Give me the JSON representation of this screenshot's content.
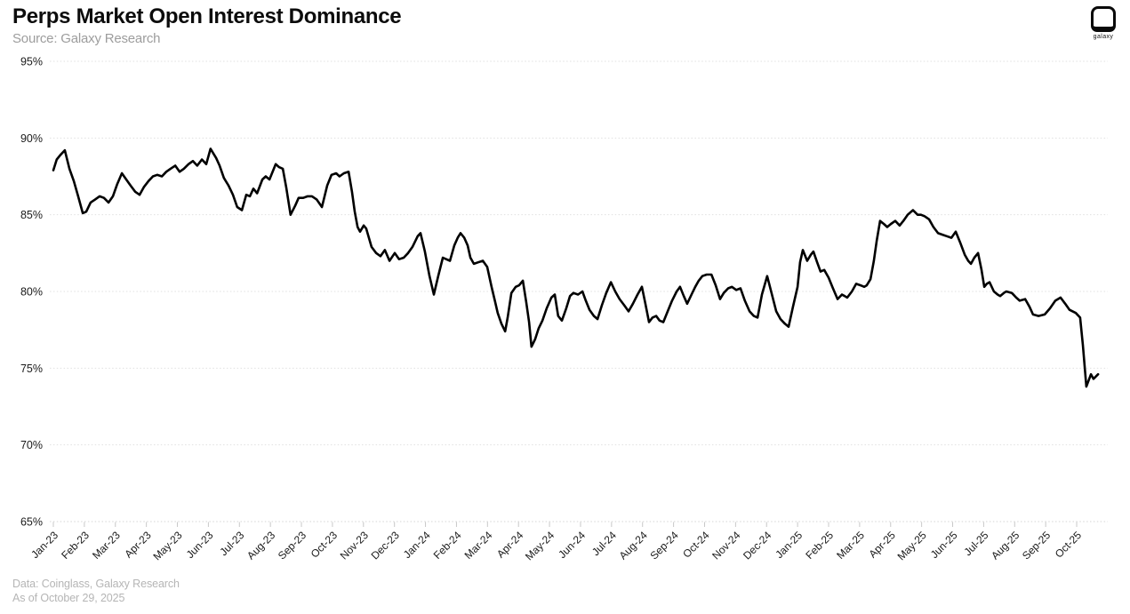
{
  "header": {
    "title": "Perps Market Open Interest Dominance",
    "source": "Source: Galaxy Research",
    "logo_text": "galaxy"
  },
  "footer": {
    "line1": "Data: Coinglass, Galaxy Research",
    "line2": "As of October 29, 2025"
  },
  "colors": {
    "line": "#000000",
    "grid": "#e0e0e0",
    "axis": "#d4d4d4",
    "tick": "#c8c8c8",
    "tick_label": "#1a1a1a",
    "title": "#0c0c0c",
    "subtitle": "#9d9d9d",
    "footer": "#b5b5b5",
    "background": "#ffffff"
  },
  "chart_data": {
    "type": "line",
    "title": "Perps Market Open Interest Dominance",
    "xlabel": "",
    "ylabel": "",
    "ylim": [
      65,
      95
    ],
    "y_ticks": [
      95,
      90,
      85,
      80,
      75,
      70,
      65
    ],
    "y_tick_labels": [
      "95%",
      "90%",
      "85%",
      "80%",
      "75%",
      "70%",
      "65%"
    ],
    "grid": "horizontal-dotted",
    "legend": "none",
    "xtick_rotation": 45,
    "x_categories": [
      "Jan-23",
      "Feb-23",
      "Mar-23",
      "Apr-23",
      "May-23",
      "Jun-23",
      "Jul-23",
      "Aug-23",
      "Sep-23",
      "Oct-23",
      "Nov-23",
      "Dec-23",
      "Jan-24",
      "Feb-24",
      "Mar-24",
      "Apr-24",
      "May-24",
      "Jun-24",
      "Jul-24",
      "Aug-24",
      "Sep-24",
      "Oct-24",
      "Nov-24",
      "Dec-24",
      "Jan-25",
      "Feb-25",
      "Mar-25",
      "Apr-25",
      "May-25",
      "Jun-25",
      "Jul-25",
      "Aug-25",
      "Sep-25",
      "Oct-25"
    ],
    "x_unit": "months since Jan-2023 (fractional)",
    "series": [
      {
        "name": "Perps market open interest dominance",
        "unit": "%",
        "points": [
          [
            0.0,
            87.9
          ],
          [
            0.11,
            88.6
          ],
          [
            0.23,
            88.9
          ],
          [
            0.37,
            89.2
          ],
          [
            0.52,
            88.0
          ],
          [
            0.66,
            87.2
          ],
          [
            0.8,
            86.2
          ],
          [
            0.95,
            85.1
          ],
          [
            1.06,
            85.2
          ],
          [
            1.2,
            85.8
          ],
          [
            1.35,
            86.0
          ],
          [
            1.49,
            86.2
          ],
          [
            1.63,
            86.1
          ],
          [
            1.78,
            85.8
          ],
          [
            1.92,
            86.2
          ],
          [
            2.06,
            87.0
          ],
          [
            2.21,
            87.7
          ],
          [
            2.35,
            87.3
          ],
          [
            2.49,
            86.9
          ],
          [
            2.64,
            86.5
          ],
          [
            2.78,
            86.3
          ],
          [
            2.92,
            86.8
          ],
          [
            3.07,
            87.2
          ],
          [
            3.21,
            87.5
          ],
          [
            3.35,
            87.6
          ],
          [
            3.5,
            87.5
          ],
          [
            3.64,
            87.8
          ],
          [
            3.78,
            88.0
          ],
          [
            3.93,
            88.2
          ],
          [
            4.07,
            87.8
          ],
          [
            4.21,
            88.0
          ],
          [
            4.36,
            88.3
          ],
          [
            4.5,
            88.5
          ],
          [
            4.64,
            88.2
          ],
          [
            4.79,
            88.6
          ],
          [
            4.93,
            88.3
          ],
          [
            5.07,
            89.3
          ],
          [
            5.25,
            88.7
          ],
          [
            5.36,
            88.2
          ],
          [
            5.5,
            87.4
          ],
          [
            5.65,
            86.9
          ],
          [
            5.79,
            86.3
          ],
          [
            5.93,
            85.5
          ],
          [
            6.08,
            85.3
          ],
          [
            6.22,
            86.3
          ],
          [
            6.34,
            86.2
          ],
          [
            6.45,
            86.7
          ],
          [
            6.57,
            86.4
          ],
          [
            6.74,
            87.3
          ],
          [
            6.85,
            87.5
          ],
          [
            6.97,
            87.3
          ],
          [
            7.17,
            88.3
          ],
          [
            7.28,
            88.1
          ],
          [
            7.4,
            88.0
          ],
          [
            7.51,
            86.8
          ],
          [
            7.65,
            85.0
          ],
          [
            7.8,
            85.6
          ],
          [
            7.91,
            86.1
          ],
          [
            8.06,
            86.1
          ],
          [
            8.2,
            86.2
          ],
          [
            8.34,
            86.2
          ],
          [
            8.49,
            86.0
          ],
          [
            8.66,
            85.5
          ],
          [
            8.83,
            86.9
          ],
          [
            8.97,
            87.6
          ],
          [
            9.12,
            87.7
          ],
          [
            9.23,
            87.5
          ],
          [
            9.37,
            87.7
          ],
          [
            9.52,
            87.8
          ],
          [
            9.63,
            86.5
          ],
          [
            9.72,
            85.2
          ],
          [
            9.81,
            84.2
          ],
          [
            9.89,
            83.9
          ],
          [
            10.01,
            84.3
          ],
          [
            10.09,
            84.1
          ],
          [
            10.26,
            82.9
          ],
          [
            10.41,
            82.5
          ],
          [
            10.55,
            82.3
          ],
          [
            10.69,
            82.7
          ],
          [
            10.84,
            82.0
          ],
          [
            11.01,
            82.5
          ],
          [
            11.15,
            82.1
          ],
          [
            11.3,
            82.2
          ],
          [
            11.44,
            82.5
          ],
          [
            11.58,
            82.9
          ],
          [
            11.75,
            83.6
          ],
          [
            11.84,
            83.8
          ],
          [
            11.98,
            82.6
          ],
          [
            12.13,
            81.0
          ],
          [
            12.27,
            79.8
          ],
          [
            12.41,
            81.0
          ],
          [
            12.56,
            82.2
          ],
          [
            12.67,
            82.1
          ],
          [
            12.79,
            82.0
          ],
          [
            12.93,
            83.0
          ],
          [
            13.04,
            83.5
          ],
          [
            13.13,
            83.8
          ],
          [
            13.25,
            83.5
          ],
          [
            13.36,
            83.0
          ],
          [
            13.45,
            82.2
          ],
          [
            13.56,
            81.8
          ],
          [
            13.7,
            81.9
          ],
          [
            13.85,
            82.0
          ],
          [
            13.99,
            81.6
          ],
          [
            14.13,
            80.3
          ],
          [
            14.25,
            79.3
          ],
          [
            14.33,
            78.6
          ],
          [
            14.45,
            77.9
          ],
          [
            14.57,
            77.4
          ],
          [
            14.65,
            78.3
          ],
          [
            14.77,
            79.9
          ],
          [
            14.91,
            80.3
          ],
          [
            15.02,
            80.4
          ],
          [
            15.14,
            80.7
          ],
          [
            15.25,
            79.3
          ],
          [
            15.34,
            78.0
          ],
          [
            15.42,
            76.4
          ],
          [
            15.54,
            76.9
          ],
          [
            15.65,
            77.6
          ],
          [
            15.77,
            78.1
          ],
          [
            15.91,
            78.9
          ],
          [
            16.06,
            79.6
          ],
          [
            16.17,
            79.8
          ],
          [
            16.28,
            78.4
          ],
          [
            16.4,
            78.1
          ],
          [
            16.54,
            78.9
          ],
          [
            16.66,
            79.7
          ],
          [
            16.77,
            79.9
          ],
          [
            16.92,
            79.8
          ],
          [
            17.06,
            80.0
          ],
          [
            17.17,
            79.4
          ],
          [
            17.29,
            78.8
          ],
          [
            17.43,
            78.4
          ],
          [
            17.55,
            78.2
          ],
          [
            17.69,
            79.1
          ],
          [
            17.83,
            79.9
          ],
          [
            17.98,
            80.6
          ],
          [
            18.12,
            80.0
          ],
          [
            18.26,
            79.5
          ],
          [
            18.41,
            79.1
          ],
          [
            18.55,
            78.7
          ],
          [
            18.69,
            79.2
          ],
          [
            18.84,
            79.8
          ],
          [
            18.98,
            80.3
          ],
          [
            19.09,
            79.2
          ],
          [
            19.21,
            78.0
          ],
          [
            19.32,
            78.3
          ],
          [
            19.44,
            78.4
          ],
          [
            19.55,
            78.1
          ],
          [
            19.67,
            78.0
          ],
          [
            19.81,
            78.7
          ],
          [
            19.95,
            79.4
          ],
          [
            20.1,
            80.0
          ],
          [
            20.21,
            80.3
          ],
          [
            20.33,
            79.7
          ],
          [
            20.44,
            79.2
          ],
          [
            20.58,
            79.8
          ],
          [
            20.7,
            80.3
          ],
          [
            20.81,
            80.7
          ],
          [
            20.93,
            81.0
          ],
          [
            21.07,
            81.1
          ],
          [
            21.22,
            81.1
          ],
          [
            21.36,
            80.4
          ],
          [
            21.5,
            79.5
          ],
          [
            21.62,
            79.9
          ],
          [
            21.76,
            80.2
          ],
          [
            21.88,
            80.3
          ],
          [
            22.02,
            80.1
          ],
          [
            22.16,
            80.2
          ],
          [
            22.3,
            79.4
          ],
          [
            22.45,
            78.7
          ],
          [
            22.59,
            78.4
          ],
          [
            22.71,
            78.3
          ],
          [
            22.85,
            79.8
          ],
          [
            23.02,
            81.0
          ],
          [
            23.16,
            79.9
          ],
          [
            23.31,
            78.7
          ],
          [
            23.45,
            78.2
          ],
          [
            23.59,
            77.9
          ],
          [
            23.71,
            77.7
          ],
          [
            23.85,
            79.0
          ],
          [
            24.0,
            80.3
          ],
          [
            24.08,
            81.9
          ],
          [
            24.17,
            82.7
          ],
          [
            24.31,
            82.0
          ],
          [
            24.43,
            82.4
          ],
          [
            24.51,
            82.6
          ],
          [
            24.63,
            81.9
          ],
          [
            24.74,
            81.3
          ],
          [
            24.86,
            81.4
          ],
          [
            25.0,
            80.9
          ],
          [
            25.14,
            80.2
          ],
          [
            25.29,
            79.5
          ],
          [
            25.43,
            79.8
          ],
          [
            25.52,
            79.7
          ],
          [
            25.6,
            79.6
          ],
          [
            25.75,
            80.0
          ],
          [
            25.89,
            80.5
          ],
          [
            26.03,
            80.4
          ],
          [
            26.15,
            80.3
          ],
          [
            26.23,
            80.4
          ],
          [
            26.35,
            80.8
          ],
          [
            26.46,
            82.0
          ],
          [
            26.55,
            83.3
          ],
          [
            26.66,
            84.6
          ],
          [
            26.78,
            84.4
          ],
          [
            26.89,
            84.2
          ],
          [
            27.01,
            84.4
          ],
          [
            27.15,
            84.6
          ],
          [
            27.29,
            84.3
          ],
          [
            27.41,
            84.6
          ],
          [
            27.55,
            85.0
          ],
          [
            27.72,
            85.3
          ],
          [
            27.87,
            85.0
          ],
          [
            27.98,
            85.0
          ],
          [
            28.1,
            84.9
          ],
          [
            28.24,
            84.7
          ],
          [
            28.38,
            84.2
          ],
          [
            28.53,
            83.8
          ],
          [
            28.67,
            83.7
          ],
          [
            28.81,
            83.6
          ],
          [
            28.96,
            83.5
          ],
          [
            29.1,
            83.9
          ],
          [
            29.24,
            83.2
          ],
          [
            29.39,
            82.4
          ],
          [
            29.5,
            82.0
          ],
          [
            29.59,
            81.8
          ],
          [
            29.7,
            82.2
          ],
          [
            29.82,
            82.5
          ],
          [
            29.93,
            81.4
          ],
          [
            30.02,
            80.3
          ],
          [
            30.1,
            80.5
          ],
          [
            30.19,
            80.6
          ],
          [
            30.33,
            80.0
          ],
          [
            30.45,
            79.8
          ],
          [
            30.53,
            79.7
          ],
          [
            30.65,
            79.9
          ],
          [
            30.73,
            80.0
          ],
          [
            30.91,
            79.9
          ],
          [
            31.05,
            79.6
          ],
          [
            31.16,
            79.4
          ],
          [
            31.34,
            79.5
          ],
          [
            31.48,
            79.0
          ],
          [
            31.59,
            78.5
          ],
          [
            31.77,
            78.4
          ],
          [
            31.97,
            78.5
          ],
          [
            32.14,
            78.9
          ],
          [
            32.31,
            79.4
          ],
          [
            32.48,
            79.6
          ],
          [
            32.63,
            79.2
          ],
          [
            32.77,
            78.8
          ],
          [
            32.97,
            78.6
          ],
          [
            33.11,
            78.3
          ],
          [
            33.2,
            76.5
          ],
          [
            33.31,
            73.8
          ],
          [
            33.46,
            74.6
          ],
          [
            33.54,
            74.3
          ],
          [
            33.69,
            74.6
          ]
        ]
      }
    ]
  }
}
